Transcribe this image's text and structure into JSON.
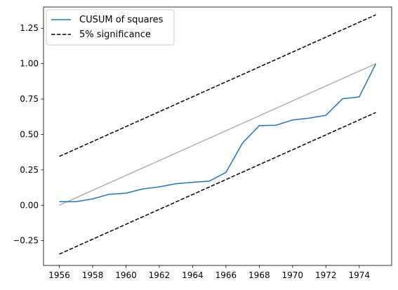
{
  "chart_data": {
    "type": "line",
    "title": "",
    "xlabel": "",
    "ylabel": "",
    "xlim": [
      1955.05,
      1975.95
    ],
    "ylim": [
      -0.425,
      1.4
    ],
    "xticks": [
      1956,
      1958,
      1960,
      1962,
      1964,
      1966,
      1968,
      1970,
      1972,
      1974
    ],
    "xtick_labels": [
      "1956",
      "1958",
      "1960",
      "1962",
      "1964",
      "1966",
      "1968",
      "1970",
      "1972",
      "1974"
    ],
    "yticks": [
      -0.25,
      0.0,
      0.25,
      0.5,
      0.75,
      1.0,
      1.25
    ],
    "ytick_labels": [
      "−0.25",
      "0.00",
      "0.25",
      "0.50",
      "0.75",
      "1.00",
      "1.25"
    ],
    "grid": false,
    "legend_position": "top-left",
    "series": [
      {
        "name": "CUSUM of squares",
        "style": "solid",
        "color": "#1f77b4",
        "x": [
          1956,
          1957,
          1958,
          1959,
          1960,
          1961,
          1962,
          1963,
          1964,
          1965,
          1966,
          1967,
          1968,
          1969,
          1970,
          1971,
          1972,
          1973,
          1974,
          1975
        ],
        "y": [
          0.025,
          0.025,
          0.045,
          0.078,
          0.085,
          0.115,
          0.13,
          0.152,
          0.162,
          0.17,
          0.232,
          0.44,
          0.562,
          0.565,
          0.602,
          0.615,
          0.635,
          0.752,
          0.765,
          1.0
        ]
      },
      {
        "name": "5% significance",
        "style": "dashed",
        "color": "#000000",
        "x": [
          1956,
          1975
        ],
        "y": [
          0.345,
          1.345
        ]
      },
      {
        "name": "",
        "style": "dashed",
        "color": "#000000",
        "x": [
          1956,
          1975
        ],
        "y": [
          -0.345,
          0.655
        ]
      },
      {
        "name": "",
        "style": "solid",
        "color": "#b0b0b0",
        "x": [
          1956,
          1975
        ],
        "y": [
          0.0,
          1.0
        ]
      }
    ]
  }
}
